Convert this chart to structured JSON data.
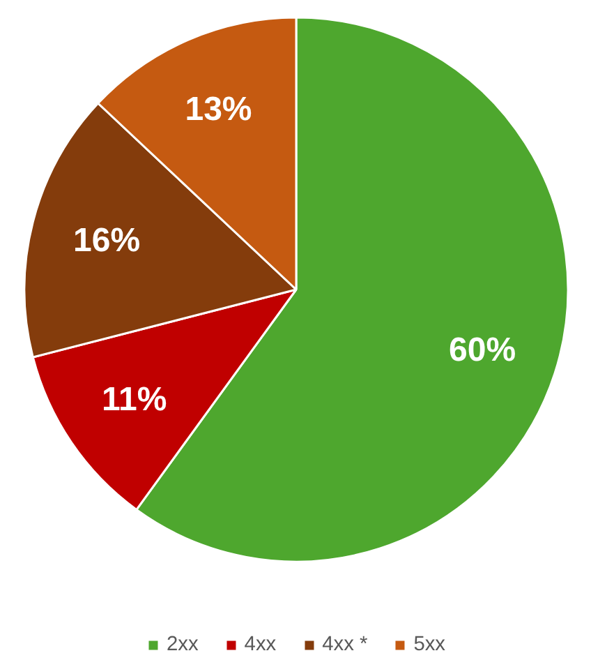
{
  "chart_data": {
    "type": "pie",
    "categories": [
      "2xx",
      "4xx",
      "4xx *",
      "5xx"
    ],
    "values": [
      60,
      11,
      16,
      13
    ],
    "colors": [
      "#4ea72e",
      "#c00000",
      "#843c0c",
      "#c55a11"
    ],
    "value_labels": [
      "60%",
      "11%",
      "16%",
      "13%"
    ],
    "legend": "bottom"
  }
}
